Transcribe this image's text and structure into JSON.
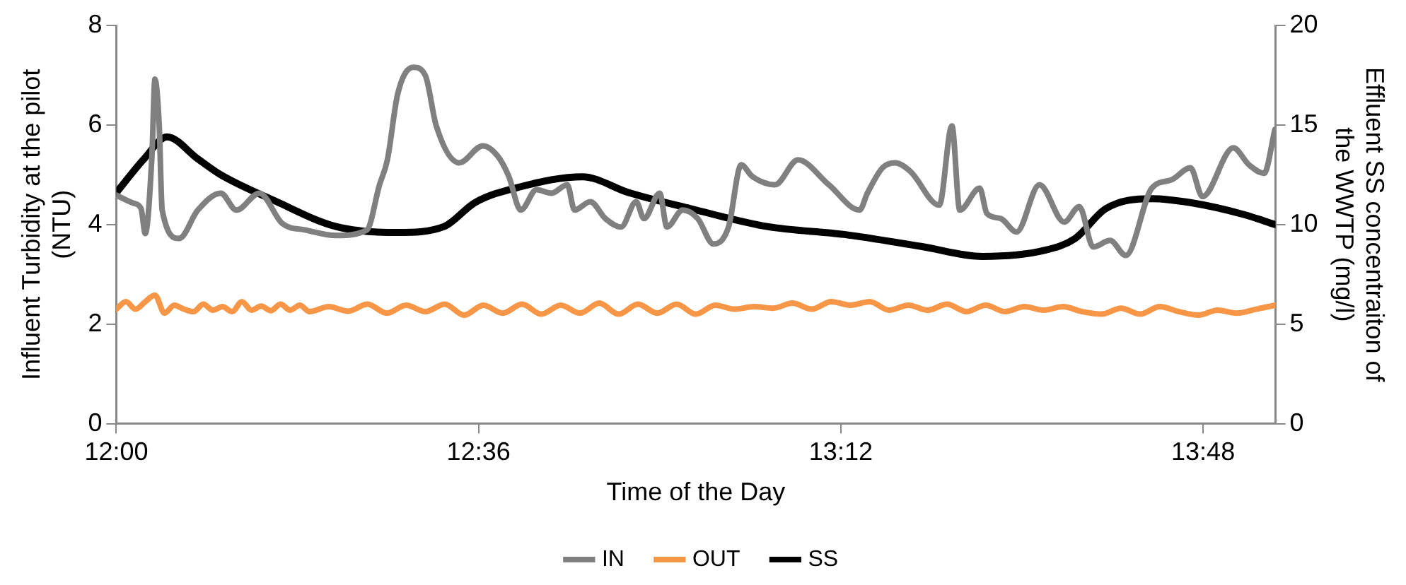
{
  "chart_data": {
    "type": "line",
    "xlabel": "Time of the Day",
    "ylabel": "Influent Turbidity at the pilot (NTU)",
    "y2label": "Effluent SS concentraiton of the WWTP (mg/l)",
    "xlim": [
      12,
      13.92
    ],
    "xticks": [
      {
        "value": 12,
        "label": "12:00"
      },
      {
        "value": 12.6,
        "label": "12:36"
      },
      {
        "value": 13.2,
        "label": "13:12"
      },
      {
        "value": 13.8,
        "label": "13:48"
      }
    ],
    "ylim": [
      0,
      8
    ],
    "yticks": [
      0,
      2,
      4,
      6,
      8
    ],
    "y2lim": [
      0,
      20
    ],
    "y2ticks": [
      0,
      5,
      10,
      15,
      20
    ],
    "grid": false,
    "legend": "bottom",
    "marker": "none",
    "line_style": "solid",
    "series": [
      {
        "name": "IN",
        "color": "#808080",
        "x": [
          12.0,
          12.028,
          12.041,
          12.048,
          12.059,
          12.064,
          12.071,
          12.076,
          12.104,
          12.135,
          12.173,
          12.199,
          12.237,
          12.275,
          12.314,
          12.364,
          12.415,
          12.436,
          12.449,
          12.466,
          12.492,
          12.512,
          12.53,
          12.568,
          12.607,
          12.632,
          12.65,
          12.67,
          12.696,
          12.721,
          12.747,
          12.759,
          12.785,
          12.81,
          12.836,
          12.861,
          12.874,
          12.9,
          12.912,
          12.938,
          12.963,
          12.989,
          13.014,
          13.035,
          13.053,
          13.091,
          13.129,
          13.18,
          13.231,
          13.244,
          13.269,
          13.29,
          13.315,
          13.363,
          13.384,
          13.397,
          13.43,
          13.442,
          13.465,
          13.491,
          13.529,
          13.57,
          13.595,
          13.618,
          13.646,
          13.672,
          13.715,
          13.748,
          13.779,
          13.799,
          13.85,
          13.876,
          13.901,
          13.919
        ],
        "values": [
          4.59,
          4.43,
          4.32,
          3.82,
          5.37,
          6.92,
          6.01,
          4.29,
          3.72,
          4.29,
          4.63,
          4.29,
          4.63,
          4.02,
          3.89,
          3.78,
          3.89,
          4.8,
          5.3,
          6.62,
          7.16,
          6.99,
          5.98,
          5.24,
          5.58,
          5.37,
          4.97,
          4.29,
          4.7,
          4.63,
          4.8,
          4.29,
          4.46,
          4.12,
          3.95,
          4.46,
          4.12,
          4.63,
          3.95,
          4.29,
          4.12,
          3.61,
          3.95,
          5.2,
          4.97,
          4.8,
          5.3,
          4.8,
          4.29,
          4.63,
          5.14,
          5.24,
          5.07,
          4.39,
          5.98,
          4.29,
          4.73,
          4.22,
          4.12,
          3.85,
          4.8,
          4.05,
          4.36,
          3.55,
          3.68,
          3.38,
          4.73,
          4.9,
          5.14,
          4.56,
          5.54,
          5.2,
          5.03,
          5.91
        ]
      },
      {
        "name": "OUT",
        "color": "#f79646",
        "x": [
          12.0,
          12.016,
          12.032,
          12.048,
          12.064,
          12.08,
          12.096,
          12.112,
          12.128,
          12.144,
          12.16,
          12.176,
          12.192,
          12.208,
          12.224,
          12.24,
          12.256,
          12.272,
          12.288,
          12.304,
          12.32,
          12.352,
          12.384,
          12.416,
          12.448,
          12.48,
          12.512,
          12.544,
          12.576,
          12.608,
          12.64,
          12.672,
          12.704,
          12.736,
          12.768,
          12.8,
          12.832,
          12.864,
          12.896,
          12.928,
          12.96,
          12.992,
          13.024,
          13.056,
          13.088,
          13.12,
          13.152,
          13.184,
          13.216,
          13.248,
          13.28,
          13.312,
          13.344,
          13.376,
          13.408,
          13.44,
          13.472,
          13.504,
          13.536,
          13.568,
          13.6,
          13.632,
          13.664,
          13.696,
          13.728,
          13.76,
          13.792,
          13.824,
          13.856,
          13.888,
          13.92
        ],
        "values": [
          2.3,
          2.45,
          2.3,
          2.45,
          2.58,
          2.22,
          2.38,
          2.3,
          2.25,
          2.4,
          2.28,
          2.35,
          2.25,
          2.45,
          2.28,
          2.36,
          2.27,
          2.4,
          2.28,
          2.38,
          2.25,
          2.35,
          2.26,
          2.4,
          2.22,
          2.38,
          2.25,
          2.4,
          2.18,
          2.38,
          2.22,
          2.4,
          2.2,
          2.38,
          2.22,
          2.42,
          2.2,
          2.4,
          2.22,
          2.4,
          2.2,
          2.38,
          2.3,
          2.35,
          2.32,
          2.42,
          2.3,
          2.45,
          2.38,
          2.45,
          2.28,
          2.38,
          2.28,
          2.4,
          2.25,
          2.38,
          2.25,
          2.35,
          2.28,
          2.35,
          2.25,
          2.2,
          2.32,
          2.2,
          2.35,
          2.25,
          2.18,
          2.28,
          2.22,
          2.3,
          2.38
        ]
      },
      {
        "name": "SS",
        "color": "#000000",
        "axis": "y2",
        "x": [
          12.0,
          12.046,
          12.084,
          12.135,
          12.173,
          12.262,
          12.364,
          12.466,
          12.543,
          12.594,
          12.67,
          12.772,
          12.849,
          12.951,
          13.078,
          13.206,
          13.333,
          13.435,
          13.537,
          13.588,
          13.639,
          13.715,
          13.779,
          13.868,
          13.919
        ],
        "values": [
          11.6,
          13.3,
          14.4,
          13.3,
          12.5,
          11.2,
          9.9,
          9.6,
          9.9,
          11.1,
          11.9,
          12.4,
          11.6,
          10.8,
          9.9,
          9.5,
          8.9,
          8.4,
          8.7,
          9.3,
          10.8,
          11.3,
          11.1,
          10.5,
          10.0
        ]
      }
    ]
  }
}
